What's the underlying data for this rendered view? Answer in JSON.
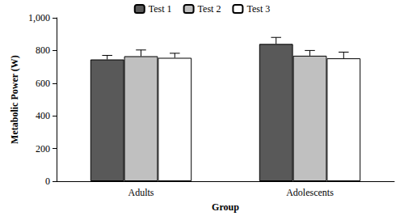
{
  "chart_data": {
    "type": "bar",
    "categories": [
      "Adults",
      "Adolescents"
    ],
    "series": [
      {
        "name": "Test 1",
        "color": "#595959",
        "values": [
          745,
          840
        ],
        "errors": [
          25,
          40
        ]
      },
      {
        "name": "Test 2",
        "color": "#c0c0c0",
        "values": [
          765,
          768
        ],
        "errors": [
          38,
          32
        ]
      },
      {
        "name": "Test 3",
        "color": "#ffffff",
        "values": [
          755,
          752
        ],
        "errors": [
          28,
          38
        ]
      }
    ],
    "x_label": "Group",
    "y_label": "Metabolic Power (W)",
    "ylim": [
      0,
      1000
    ],
    "yticks": [
      0,
      200,
      400,
      600,
      800,
      1000
    ],
    "grid": false,
    "legend": "top"
  }
}
